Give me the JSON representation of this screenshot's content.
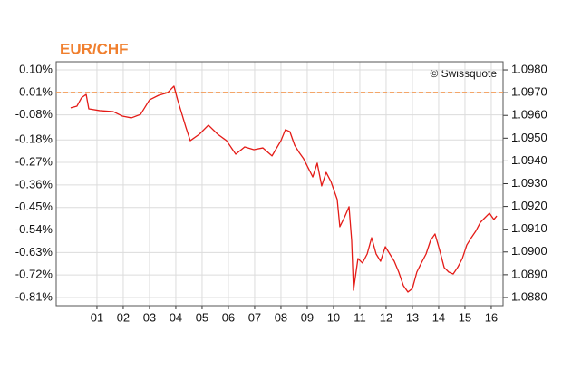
{
  "chart_data": {
    "type": "line",
    "title": "EUR/CHF",
    "annotation": "© Swissquote",
    "color": "#e41b17",
    "title_color": "#f07f2e",
    "grid": true,
    "reference_line": {
      "value": 0.01,
      "color": "#f39a55"
    },
    "x": [
      0,
      0.24,
      0.41,
      0.59,
      0.69,
      1.1,
      1.62,
      1.97,
      2.31,
      2.66,
      3.0,
      3.34,
      3.69,
      3.93,
      4.07,
      4.38,
      4.55,
      4.9,
      5.24,
      5.59,
      5.93,
      6.28,
      6.62,
      6.97,
      7.31,
      7.66,
      8.0,
      8.17,
      8.34,
      8.52,
      8.69,
      8.86,
      9.21,
      9.38,
      9.55,
      9.72,
      9.9,
      10.14,
      10.24,
      10.41,
      10.59,
      10.69,
      10.76,
      10.93,
      11.1,
      11.28,
      11.45,
      11.62,
      11.79,
      11.97,
      12.14,
      12.31,
      12.48,
      12.66,
      12.83,
      13.0,
      13.17,
      13.34,
      13.52,
      13.69,
      13.86,
      14.03,
      14.21,
      14.38,
      14.55,
      14.72,
      14.9,
      15.07,
      15.24,
      15.41,
      15.59,
      15.76,
      15.93,
      16.1,
      16.21
    ],
    "values": [
      -0.052,
      -0.045,
      -0.012,
      0.002,
      -0.056,
      -0.063,
      -0.067,
      -0.085,
      -0.092,
      -0.078,
      -0.02,
      -0.002,
      0.009,
      0.035,
      -0.02,
      -0.128,
      -0.183,
      -0.157,
      -0.121,
      -0.157,
      -0.183,
      -0.237,
      -0.208,
      -0.219,
      -0.212,
      -0.244,
      -0.183,
      -0.139,
      -0.147,
      -0.201,
      -0.23,
      -0.255,
      -0.328,
      -0.273,
      -0.364,
      -0.31,
      -0.346,
      -0.418,
      -0.527,
      -0.491,
      -0.447,
      -0.582,
      -0.781,
      -0.654,
      -0.672,
      -0.636,
      -0.571,
      -0.636,
      -0.665,
      -0.607,
      -0.636,
      -0.665,
      -0.708,
      -0.763,
      -0.788,
      -0.774,
      -0.708,
      -0.672,
      -0.636,
      -0.582,
      -0.556,
      -0.618,
      -0.69,
      -0.708,
      -0.716,
      -0.69,
      -0.654,
      -0.6,
      -0.571,
      -0.545,
      -0.509,
      -0.491,
      -0.473,
      -0.498,
      -0.484
    ],
    "xlim": [
      -0.55,
      16.45
    ],
    "xticks": [
      {
        "value": 1,
        "label": "01"
      },
      {
        "value": 2,
        "label": "02"
      },
      {
        "value": 3,
        "label": "03"
      },
      {
        "value": 4,
        "label": "04"
      },
      {
        "value": 5,
        "label": "05"
      },
      {
        "value": 6,
        "label": "06"
      },
      {
        "value": 7,
        "label": "07"
      },
      {
        "value": 8,
        "label": "08"
      },
      {
        "value": 9,
        "label": "09"
      },
      {
        "value": 10,
        "label": "10"
      },
      {
        "value": 11,
        "label": "11"
      },
      {
        "value": 12,
        "label": "12"
      },
      {
        "value": 13,
        "label": "13"
      },
      {
        "value": 14,
        "label": "14"
      },
      {
        "value": 15,
        "label": "15"
      },
      {
        "value": 16,
        "label": "16"
      }
    ],
    "ylim": [
      -0.8426,
      0.1326
    ],
    "yticks": [
      {
        "value": 0.1,
        "label": "0.10%"
      },
      {
        "value": 0.01,
        "label": "0.01%"
      },
      {
        "value": -0.08,
        "label": "-0.08%"
      },
      {
        "value": -0.18,
        "label": "-0.18%"
      },
      {
        "value": -0.27,
        "label": "-0.27%"
      },
      {
        "value": -0.36,
        "label": "-0.36%"
      },
      {
        "value": -0.45,
        "label": "-0.45%"
      },
      {
        "value": -0.54,
        "label": "-0.54%"
      },
      {
        "value": -0.63,
        "label": "-0.63%"
      },
      {
        "value": -0.72,
        "label": "-0.72%"
      },
      {
        "value": -0.81,
        "label": "-0.81%"
      }
    ],
    "y2lim": [
      1.08764,
      1.09836
    ],
    "y2ticks": [
      {
        "value": 1.098,
        "label": "1.0980"
      },
      {
        "value": 1.097,
        "label": "1.0970"
      },
      {
        "value": 1.096,
        "label": "1.0960"
      },
      {
        "value": 1.095,
        "label": "1.0950"
      },
      {
        "value": 1.094,
        "label": "1.0940"
      },
      {
        "value": 1.093,
        "label": "1.0930"
      },
      {
        "value": 1.092,
        "label": "1.0920"
      },
      {
        "value": 1.091,
        "label": "1.0910"
      },
      {
        "value": 1.09,
        "label": "1.0900"
      },
      {
        "value": 1.089,
        "label": "1.0890"
      },
      {
        "value": 1.088,
        "label": "1.0880"
      }
    ]
  }
}
